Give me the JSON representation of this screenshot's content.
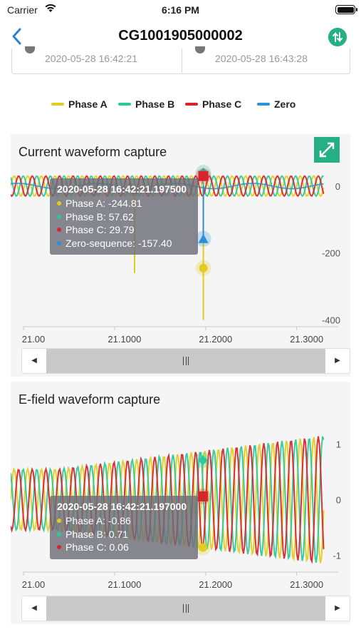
{
  "status_bar": {
    "carrier": "Carrier",
    "time": "6:16 PM"
  },
  "nav": {
    "title": "CG1001905000002"
  },
  "date_range": {
    "start": "2020-05-28 16:42:21",
    "end": "2020-05-28 16:43:28"
  },
  "legend": [
    {
      "label": "Phase A",
      "color": "#e1cd1f"
    },
    {
      "label": "Phase B",
      "color": "#2ec99a"
    },
    {
      "label": "Phase C",
      "color": "#d7262b"
    },
    {
      "label": "Zero",
      "color": "#2d8fd6"
    }
  ],
  "colors": {
    "accent": "#25b084",
    "phase_a": "#e1cd1f",
    "phase_b": "#2ec99a",
    "phase_c": "#d7262b",
    "zero": "#2d8fd6"
  },
  "current_panel": {
    "title": "Current waveform capture",
    "tooltip": {
      "title": "2020-05-28 16:42:21.197500",
      "rows": [
        "Phase A: -244.81",
        "Phase B: 57.62",
        "Phase C: 29.79",
        "Zero-sequence: -157.40"
      ]
    }
  },
  "efield_panel": {
    "title": "E-field waveform capture",
    "tooltip": {
      "title": "2020-05-28 16:42:21.197000",
      "rows": [
        "Phase A: -0.86",
        "Phase B: 0.71",
        "Phase C: 0.06"
      ]
    }
  },
  "chart_data": [
    {
      "type": "line",
      "title": "Current waveform capture",
      "xlim": [
        21.0,
        21.33
      ],
      "ylim": [
        -420,
        40
      ],
      "x_ticks": [
        "21.00",
        "21.1000",
        "21.2000",
        "21.3000"
      ],
      "y_ticks": [
        "0",
        "-200",
        "-400"
      ],
      "cursor_x": 21.1975,
      "series": [
        {
          "name": "Phase A",
          "amplitude": 30,
          "spike_min": -400
        },
        {
          "name": "Phase B",
          "amplitude": 30
        },
        {
          "name": "Phase C",
          "amplitude": 30
        },
        {
          "name": "Zero",
          "amplitude": 8,
          "spike_min": -157.4
        }
      ],
      "markers": {
        "Phase A": -244.81,
        "Phase B": 57.62,
        "Phase C": 29.79,
        "Zero": -157.4
      }
    },
    {
      "type": "line",
      "title": "E-field waveform capture",
      "xlim": [
        21.0,
        21.33
      ],
      "ylim": [
        -1.3,
        1.3
      ],
      "x_ticks": [
        "21.00",
        "21.1000",
        "21.2000",
        "21.3000"
      ],
      "y_ticks": [
        "1",
        "0",
        "-1"
      ],
      "cursor_x": 21.197,
      "series": [
        {
          "name": "Phase A",
          "amplitude": 1.0
        },
        {
          "name": "Phase B",
          "amplitude": 1.0
        },
        {
          "name": "Phase C",
          "amplitude": 1.0
        }
      ],
      "markers": {
        "Phase A": -0.86,
        "Phase B": 0.71,
        "Phase C": 0.06
      }
    }
  ]
}
